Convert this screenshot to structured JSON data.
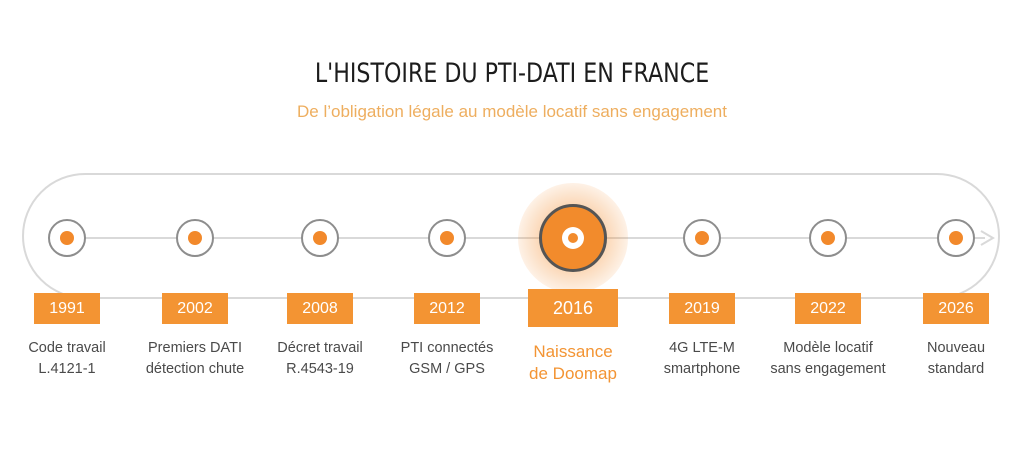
{
  "header": {
    "title": "L'HISTOIRE DU PTI-DATI EN FRANCE",
    "subtitle": "De l’obligation légale au modèle locatif sans engagement"
  },
  "colors": {
    "accent": "#f39433",
    "track": "#d9d9d9",
    "text": "#4a4a4a",
    "subtitle": "#eeae5f"
  },
  "timeline": [
    {
      "year": "1991",
      "line1": "Code travail",
      "line2": "L.4121-1",
      "highlight": false
    },
    {
      "year": "2002",
      "line1": "Premiers DATI",
      "line2": "détection chute",
      "highlight": false
    },
    {
      "year": "2008",
      "line1": "Décret travail",
      "line2": "R.4543-19",
      "highlight": false
    },
    {
      "year": "2012",
      "line1": "PTI connectés",
      "line2": "GSM / GPS",
      "highlight": false
    },
    {
      "year": "2016",
      "line1": "Naissance",
      "line2": "de Doomap",
      "highlight": true
    },
    {
      "year": "2019",
      "line1": "4G LTE-M",
      "line2": "smartphone",
      "highlight": false
    },
    {
      "year": "2022",
      "line1": "Modèle locatif",
      "line2": "sans engagement",
      "highlight": false
    },
    {
      "year": "2026",
      "line1": "Nouveau",
      "line2": "standard",
      "highlight": false
    }
  ]
}
